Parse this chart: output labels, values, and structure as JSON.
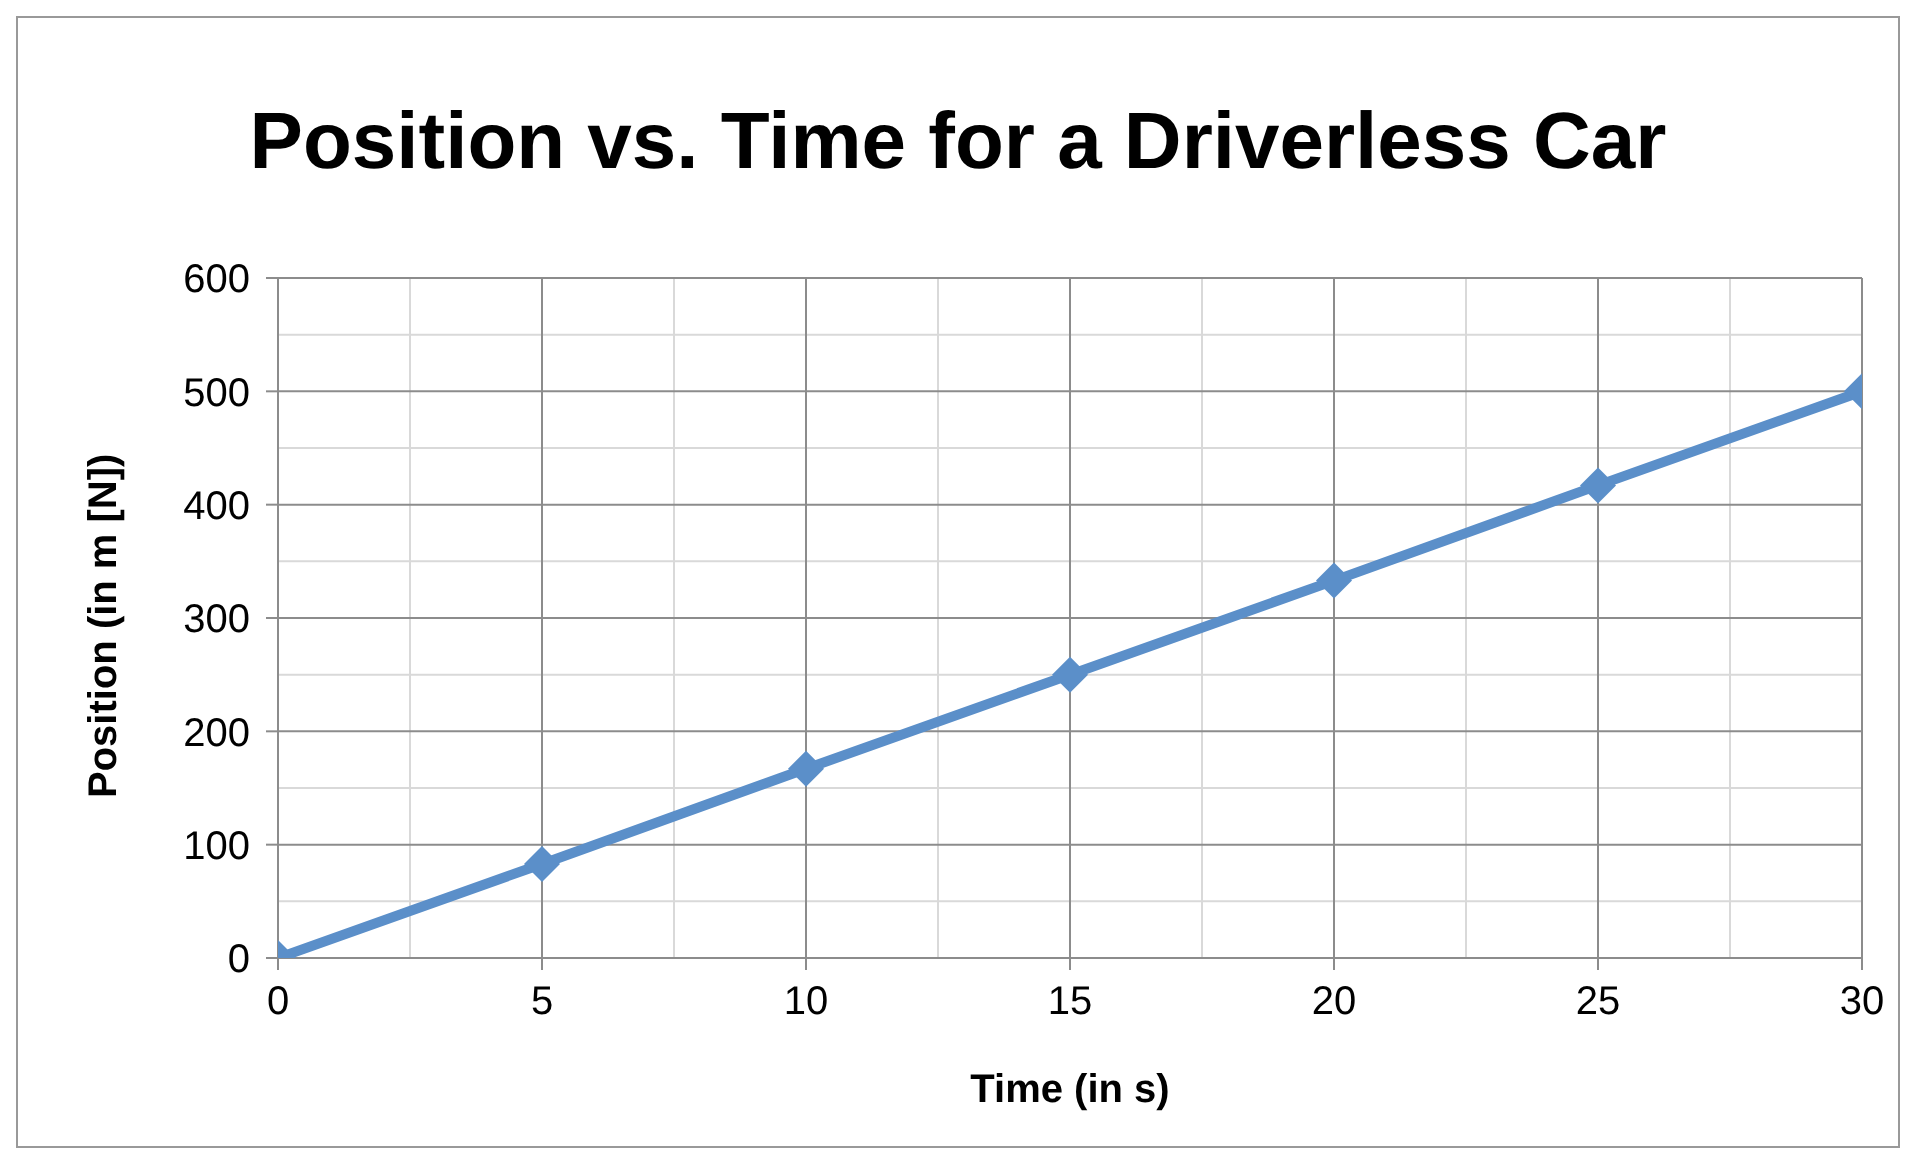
{
  "chart_data": {
    "type": "line",
    "title": "Position vs. Time for a Driverless Car",
    "xlabel": "Time (in s)",
    "ylabel": "Position (in m [N])",
    "x": [
      0,
      5,
      10,
      15,
      20,
      25,
      30
    ],
    "series": [
      {
        "color": "#5b8fc9",
        "values": [
          0,
          83,
          167,
          250,
          333,
          417,
          500
        ]
      }
    ],
    "xlim": [
      0,
      30
    ],
    "xticks": [
      0,
      5,
      10,
      15,
      20,
      25,
      30
    ],
    "ylim": [
      0,
      600
    ],
    "yticks": [
      0,
      100,
      200,
      300,
      400,
      500,
      600
    ],
    "grid": true,
    "legend": false,
    "marker": "diamond",
    "line_style": "solid"
  }
}
